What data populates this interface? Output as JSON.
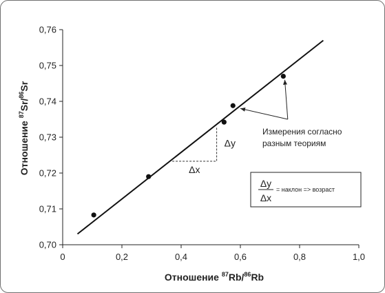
{
  "chart_data": {
    "type": "scatter",
    "xlabel": {
      "prefix": "Отношение ",
      "num_sup": "87",
      "num": "Rb",
      "slash": "/",
      "den_sup": "86",
      "den": "Rb"
    },
    "ylabel": {
      "prefix": "Отношение ",
      "num_sup": "87",
      "num": "Sr",
      "slash": "/",
      "den_sup": "86",
      "den": "Sr"
    },
    "xlim": [
      0,
      1.0
    ],
    "ylim": [
      0.7,
      0.76
    ],
    "x_ticks": [
      {
        "v": 0,
        "label": "0"
      },
      {
        "v": 0.2,
        "label": "0,2"
      },
      {
        "v": 0.4,
        "label": "0,4"
      },
      {
        "v": 0.6,
        "label": "0,6"
      },
      {
        "v": 0.8,
        "label": "0,8"
      },
      {
        "v": 1.0,
        "label": "1,0"
      }
    ],
    "y_ticks": [
      {
        "v": 0.7,
        "label": "0,70"
      },
      {
        "v": 0.71,
        "label": "0,71"
      },
      {
        "v": 0.72,
        "label": "0,72"
      },
      {
        "v": 0.73,
        "label": "0,73"
      },
      {
        "v": 0.74,
        "label": "0,74"
      },
      {
        "v": 0.75,
        "label": "0,75"
      },
      {
        "v": 0.76,
        "label": "0,76"
      }
    ],
    "points": [
      {
        "x": 0.105,
        "y": 0.7083
      },
      {
        "x": 0.29,
        "y": 0.719
      },
      {
        "x": 0.545,
        "y": 0.7342
      },
      {
        "x": 0.575,
        "y": 0.7388
      },
      {
        "x": 0.745,
        "y": 0.747
      }
    ],
    "fit_line": {
      "x": [
        0.05,
        0.88
      ],
      "y": [
        0.703,
        0.757
      ]
    },
    "slope_triangle": {
      "x0": 0.37,
      "x1": 0.52,
      "y0": 0.7233,
      "y1": 0.733
    },
    "annotation": {
      "lines": [
        "Измерения согласно",
        "разным теориям"
      ],
      "anchor": {
        "x": 0.76,
        "y": 0.735
      },
      "targets": [
        {
          "x": 0.6,
          "y": 0.738
        },
        {
          "x": 0.75,
          "y": 0.746
        }
      ]
    },
    "delta_x": "Δx",
    "delta_y": "Δy",
    "formula": {
      "num": "Δy",
      "den": "Δx",
      "text": "= наклон => возраст"
    }
  }
}
